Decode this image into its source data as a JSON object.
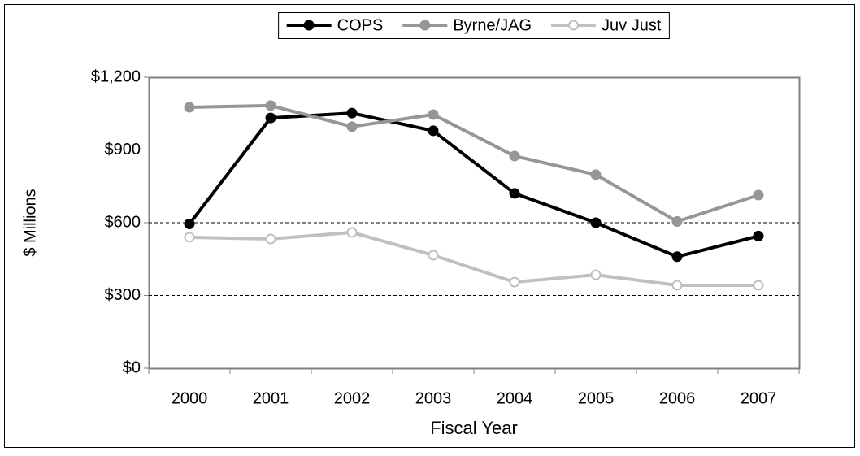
{
  "chart_data": {
    "type": "line",
    "x_label": "Fiscal Year",
    "y_label": "$ Millions",
    "categories": [
      "2000",
      "2001",
      "2002",
      "2003",
      "2004",
      "2005",
      "2006",
      "2007"
    ],
    "series": [
      {
        "name": "COPS",
        "color": "#000000",
        "marker_fill": "#000000",
        "values": [
          595,
          1032,
          1052,
          979,
          721,
          600,
          460,
          545
        ]
      },
      {
        "name": "Byrne/JAG",
        "color": "#969696",
        "marker_fill": "#969696",
        "values": [
          1076,
          1083,
          996,
          1046,
          875,
          798,
          605,
          714
        ]
      },
      {
        "name": "Juv Just",
        "color": "#c0c0c0",
        "marker_fill": "#ffffff",
        "values": [
          540,
          533,
          560,
          466,
          355,
          385,
          342,
          342
        ]
      }
    ],
    "ylim": [
      0,
      1200
    ],
    "yticks": [
      {
        "value": 0,
        "label": "$0"
      },
      {
        "value": 300,
        "label": "$300"
      },
      {
        "value": 600,
        "label": "$600"
      },
      {
        "value": 900,
        "label": "$900"
      },
      {
        "value": 1200,
        "label": "$1,200"
      }
    ],
    "grid": true,
    "legend": "top"
  }
}
